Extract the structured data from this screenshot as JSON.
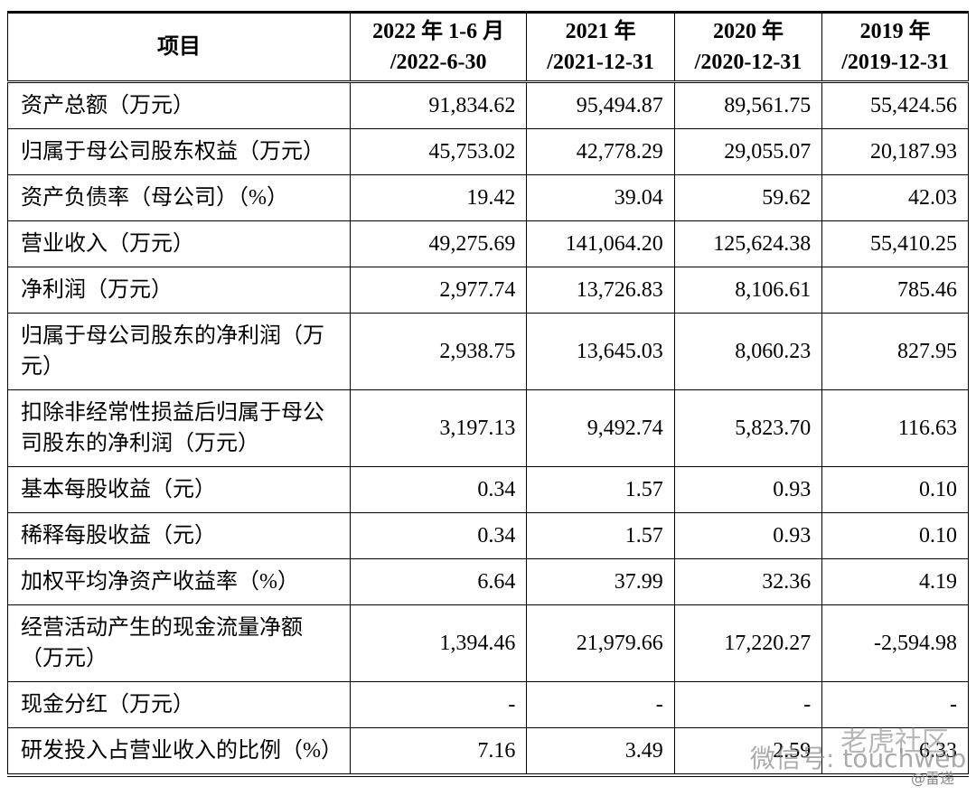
{
  "table": {
    "header": [
      [
        "项目"
      ],
      [
        "2022 年 1-6 月",
        "/2022-6-30"
      ],
      [
        "2021 年",
        "/2021-12-31"
      ],
      [
        "2020 年",
        "/2020-12-31"
      ],
      [
        "2019 年",
        "/2019-12-31"
      ]
    ],
    "rows": [
      [
        "资产总额（万元）",
        "91,834.62",
        "95,494.87",
        "89,561.75",
        "55,424.56"
      ],
      [
        "归属于母公司股东权益（万元）",
        "45,753.02",
        "42,778.29",
        "29,055.07",
        "20,187.93"
      ],
      [
        "资产负债率（母公司）（%）",
        "19.42",
        "39.04",
        "59.62",
        "42.03"
      ],
      [
        "营业收入（万元）",
        "49,275.69",
        "141,064.20",
        "125,624.38",
        "55,410.25"
      ],
      [
        "净利润（万元）",
        "2,977.74",
        "13,726.83",
        "8,106.61",
        "785.46"
      ],
      [
        "归属于母公司股东的净利润（万元）",
        "2,938.75",
        "13,645.03",
        "8,060.23",
        "827.95"
      ],
      [
        "扣除非经常性损益后归属于母公司股东的净利润（万元）",
        "3,197.13",
        "9,492.74",
        "5,823.70",
        "116.63"
      ],
      [
        "基本每股收益（元）",
        "0.34",
        "1.57",
        "0.93",
        "0.10"
      ],
      [
        "稀释每股收益（元）",
        "0.34",
        "1.57",
        "0.93",
        "0.10"
      ],
      [
        "加权平均净资产收益率（%）",
        "6.64",
        "37.99",
        "32.36",
        "4.19"
      ],
      [
        "经营活动产生的现金流量净额（万元）",
        "1,394.46",
        "21,979.66",
        "17,220.27",
        "-2,594.98"
      ],
      [
        "现金分红（万元）",
        "-",
        "-",
        "-",
        "-"
      ],
      [
        "研发投入占营业收入的比例（%）",
        "7.16",
        "3.49",
        "2.59",
        "6.33"
      ]
    ]
  },
  "watermark": {
    "brand": "老虎社区",
    "account": "微信号: touchweb",
    "source": "@雷递"
  }
}
